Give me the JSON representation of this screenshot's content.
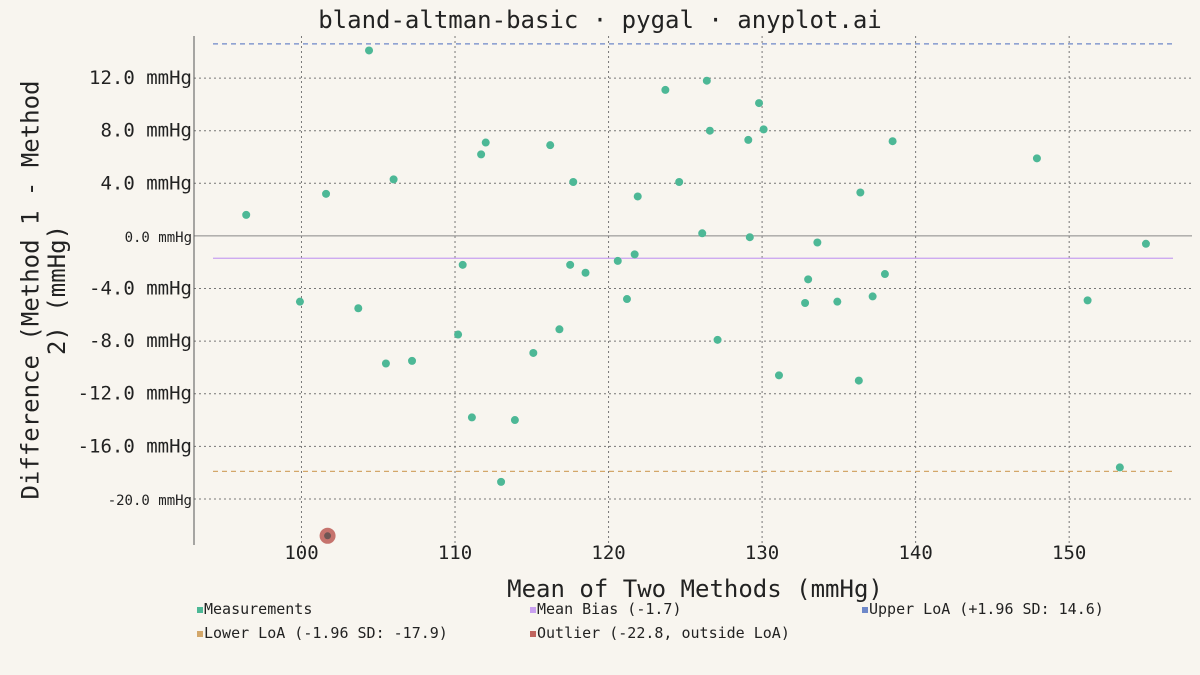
{
  "chart_data": {
    "type": "scatter",
    "title": "bland-altman-basic · pygal · anyplot.ai",
    "xlabel": "Mean of Two Methods (mmHg)",
    "ylabel": "Difference (Method 1 - Method 2) (mmHg)",
    "xlim": [
      93,
      158
    ],
    "ylim": [
      -23.5,
      15.2
    ],
    "x_ticks": [
      100,
      110,
      120,
      130,
      140,
      150
    ],
    "y_ticks": [
      {
        "value": 12,
        "label": "12.0 mmHg"
      },
      {
        "value": 8,
        "label": "8.0 mmHg"
      },
      {
        "value": 4,
        "label": "4.0 mmHg"
      },
      {
        "value": 0,
        "label": "0.0 mmHg",
        "minor": true
      },
      {
        "value": -4,
        "label": "-4.0 mmHg"
      },
      {
        "value": -8,
        "label": "-8.0 mmHg"
      },
      {
        "value": -12,
        "label": "-12.0 mmHg"
      },
      {
        "value": -16,
        "label": "-16.0 mmHg"
      },
      {
        "value": -20,
        "label": "-20.0 mmHg",
        "minor": true
      }
    ],
    "grid": true,
    "legend_position": "bottom",
    "series": [
      {
        "name": "Measurements",
        "color": "#4db896",
        "points": [
          [
            96.4,
            1.6
          ],
          [
            99.9,
            -5.0
          ],
          [
            101.6,
            3.2
          ],
          [
            103.7,
            -5.5
          ],
          [
            104.4,
            14.1
          ],
          [
            105.5,
            -9.7
          ],
          [
            106.0,
            4.3
          ],
          [
            107.2,
            -9.5
          ],
          [
            110.2,
            -7.5
          ],
          [
            110.5,
            -2.2
          ],
          [
            111.1,
            -13.8
          ],
          [
            111.7,
            6.2
          ],
          [
            112.0,
            7.1
          ],
          [
            113.9,
            -14.0
          ],
          [
            113.0,
            -18.7
          ],
          [
            115.1,
            -8.9
          ],
          [
            116.2,
            6.9
          ],
          [
            116.8,
            -7.1
          ],
          [
            117.5,
            -2.2
          ],
          [
            117.7,
            4.1
          ],
          [
            118.5,
            -2.8
          ],
          [
            120.6,
            -1.9
          ],
          [
            121.2,
            -4.8
          ],
          [
            121.7,
            -1.4
          ],
          [
            121.9,
            3.0
          ],
          [
            123.7,
            11.1
          ],
          [
            124.6,
            4.1
          ],
          [
            126.1,
            0.2
          ],
          [
            126.4,
            11.8
          ],
          [
            126.6,
            8.0
          ],
          [
            127.1,
            -7.9
          ],
          [
            129.1,
            7.3
          ],
          [
            129.2,
            -0.1
          ],
          [
            129.8,
            10.1
          ],
          [
            130.1,
            8.1
          ],
          [
            131.1,
            -10.6
          ],
          [
            132.8,
            -5.1
          ],
          [
            133.0,
            -3.3
          ],
          [
            133.6,
            -0.5
          ],
          [
            134.9,
            -5.0
          ],
          [
            136.3,
            -11.0
          ],
          [
            136.4,
            3.3
          ],
          [
            137.2,
            -4.6
          ],
          [
            138.0,
            -2.9
          ],
          [
            138.5,
            7.2
          ],
          [
            147.9,
            5.9
          ],
          [
            151.2,
            -4.9
          ],
          [
            153.3,
            -17.6
          ],
          [
            155.0,
            -0.6
          ]
        ]
      },
      {
        "name": "Mean Bias (-1.7)",
        "color": "#c9a0f0",
        "value": -1.7
      },
      {
        "name": "Upper LoA (+1.96 SD: 14.6)",
        "color": "#6e88c9",
        "value": 14.6
      },
      {
        "name": "Lower LoA (-1.96 SD: -17.9)",
        "color": "#d3a76a",
        "value": -17.9
      },
      {
        "name": "Outlier (-22.8, outside LoA)",
        "color": "#c0655e",
        "points": [
          [
            101.7,
            -22.8
          ]
        ]
      }
    ]
  }
}
